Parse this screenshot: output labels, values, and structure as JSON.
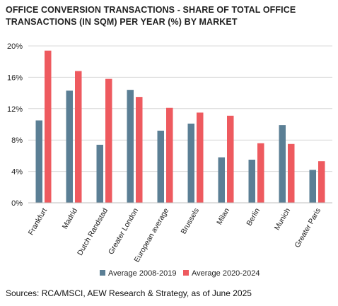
{
  "chart_data": {
    "type": "bar",
    "title": "OFFICE CONVERSION TRANSACTIONS - SHARE OF TOTAL OFFICE TRANSACTIONS (IN SQM) PER YEAR (%) BY MARKET",
    "categories": [
      "Frankfurt",
      "Madrid",
      "Dutch Randstad",
      "Greater London",
      "European average",
      "Brussels",
      "Milan",
      "Berlin",
      "Munich",
      "Greater Paris"
    ],
    "series": [
      {
        "name": "Average 2008-2019",
        "color": "#5b7f95",
        "values": [
          10.5,
          14.3,
          7.4,
          14.4,
          9.2,
          10.1,
          5.8,
          5.5,
          9.9,
          4.2
        ]
      },
      {
        "name": "Average 2020-2024",
        "color": "#ee5a5f",
        "values": [
          19.4,
          16.8,
          15.8,
          13.5,
          12.1,
          11.5,
          11.1,
          7.6,
          7.5,
          5.3
        ]
      }
    ],
    "ylim": [
      0,
      20
    ],
    "yticks": [
      0,
      4,
      8,
      12,
      16,
      20
    ],
    "ytick_labels": [
      "0%",
      "4%",
      "8%",
      "12%",
      "16%",
      "20%"
    ],
    "xlabel": "",
    "ylabel": "",
    "grid": true,
    "legend_position": "bottom"
  },
  "source": "Sources: RCA/MSCI, AEW Research & Strategy, as of June 2025"
}
